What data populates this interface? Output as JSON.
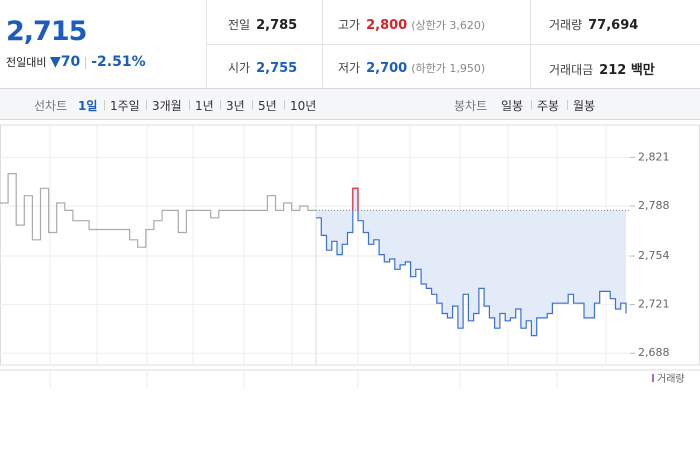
{
  "header": {
    "price": "2,715",
    "change_label": "전일대비",
    "change": "▼70",
    "change_rate": "-2.51%",
    "stats": [
      {
        "label": "전일",
        "value": "2,785"
      },
      {
        "label": "고가",
        "value": "2,800",
        "note": "(상한가 3,620)"
      },
      {
        "label": "거래량",
        "value": "77,694"
      },
      {
        "label": "시가",
        "value": "2,755"
      },
      {
        "label": "저가",
        "value": "2,700",
        "note": "(하한가 1,950)"
      },
      {
        "label": "거래대금",
        "value": "212 백만"
      }
    ]
  },
  "tabs": {
    "line_label": "선차트",
    "line": [
      "1일",
      "1주일",
      "3개월",
      "1년",
      "3년",
      "5년",
      "10년"
    ],
    "candle_label": "봉차트",
    "candle": [
      "일봉",
      "주봉",
      "월봉"
    ]
  },
  "chart_data": {
    "type": "line",
    "baseline": 2785,
    "ylim": [
      2680,
      2843
    ],
    "yticks": [
      {
        "value": 2688,
        "label": "2,688"
      },
      {
        "value": 2721,
        "label": "2,721"
      },
      {
        "value": 2754,
        "label": "2,754"
      },
      {
        "value": 2788,
        "label": "2,788"
      },
      {
        "value": 2821,
        "label": "2,821"
      }
    ],
    "volume_label": "거래량",
    "series": [
      {
        "color": "#aaaaaa",
        "values": [
          2790,
          2810,
          2775,
          2795,
          2765,
          2800,
          2770,
          2790,
          2785,
          2778,
          2778,
          2772,
          2772,
          2772,
          2772,
          2772,
          2765,
          2760,
          2772,
          2778,
          2785,
          2785,
          2770,
          2785,
          2785,
          2785,
          2780,
          2785,
          2785,
          2785,
          2785,
          2785,
          2785,
          2795,
          2785,
          2790,
          2785,
          2788,
          2785,
          2785
        ]
      },
      {
        "color": "#3a6fd8",
        "up_color": "#e8424a",
        "fill": "#e3ebf8",
        "values": [
          2780,
          2768,
          2758,
          2764,
          2755,
          2762,
          2770,
          2800,
          2778,
          2770,
          2762,
          2765,
          2755,
          2750,
          2752,
          2745,
          2748,
          2750,
          2740,
          2745,
          2735,
          2732,
          2728,
          2722,
          2715,
          2712,
          2720,
          2705,
          2728,
          2710,
          2715,
          2732,
          2720,
          2712,
          2705,
          2715,
          2710,
          2712,
          2718,
          2705,
          2710,
          2700,
          2712,
          2712,
          2715,
          2722,
          2722,
          2722,
          2728,
          2722,
          2722,
          2712,
          2712,
          2722,
          2730,
          2730,
          2725,
          2718,
          2722,
          2715
        ]
      }
    ]
  }
}
